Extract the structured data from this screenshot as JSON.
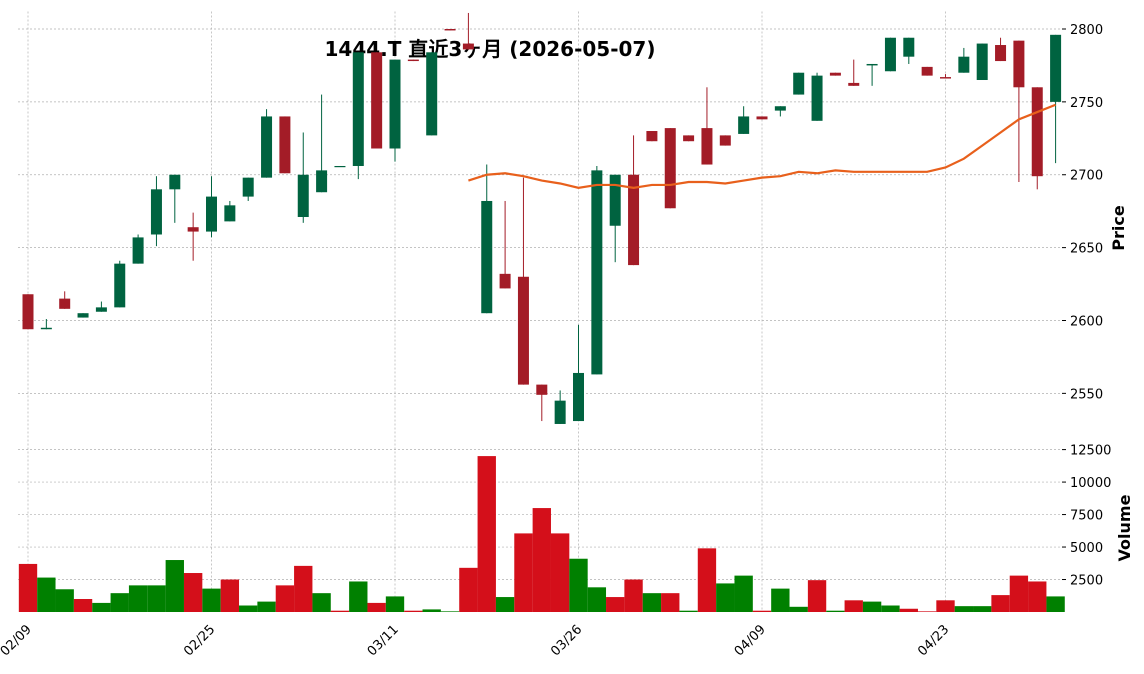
{
  "chart_data": {
    "type": "candlestick",
    "title": "1444.T 直近3ヶ月 (2026-05-07)",
    "y_label": "Price",
    "categories": [
      "02/09",
      null,
      null,
      null,
      null,
      null,
      null,
      null,
      null,
      null,
      "02/25",
      null,
      null,
      null,
      null,
      null,
      null,
      null,
      null,
      null,
      "03/11",
      null,
      null,
      null,
      null,
      null,
      null,
      null,
      null,
      null,
      "03/26",
      null,
      null,
      null,
      null,
      null,
      null,
      null,
      null,
      null,
      "04/09",
      null,
      null,
      null,
      null,
      null,
      null,
      null,
      null,
      null,
      "04/23",
      null,
      null,
      null,
      null,
      null,
      null
    ],
    "open": [
      2618,
      2594,
      2615,
      2602,
      2606,
      2609,
      2639,
      2659,
      2690,
      2664,
      2661,
      2668,
      2685,
      2698,
      2740,
      2671,
      2688,
      2706,
      2706,
      2784,
      2718,
      2779,
      2727,
      2800,
      2790,
      2605,
      2632,
      2630,
      2556,
      2529,
      2531,
      2563,
      2665,
      2700,
      2730,
      2732,
      2727,
      2732,
      2727,
      2728,
      2740,
      2744,
      2755,
      2737,
      2770,
      2763,
      2775,
      2771,
      2781,
      2774,
      2767,
      2770,
      2765,
      2789,
      2792,
      2760,
      2750
    ],
    "high": [
      2618,
      2601,
      2620,
      2605,
      2613,
      2641,
      2659,
      2699,
      2700,
      2674,
      2699,
      2682,
      2698,
      2745,
      2740,
      2729,
      2755,
      2706,
      2784,
      2784,
      2779,
      2779,
      2784,
      2800,
      2811,
      2707,
      2682,
      2698,
      2556,
      2552,
      2597,
      2706,
      2700,
      2727,
      2730,
      2732,
      2727,
      2760,
      2727,
      2747,
      2740,
      2747,
      2770,
      2770,
      2770,
      2779,
      2776,
      2794,
      2794,
      2774,
      2769,
      2787,
      2790,
      2794,
      2792,
      2760,
      2796
    ],
    "low": [
      2594,
      2594,
      2608,
      2602,
      2606,
      2609,
      2639,
      2651,
      2667,
      2641,
      2657,
      2668,
      2682,
      2698,
      2701,
      2667,
      2688,
      2706,
      2697,
      2718,
      2709,
      2778,
      2727,
      2799,
      2786,
      2605,
      2622,
      2556,
      2531,
      2529,
      2531,
      2563,
      2640,
      2638,
      2723,
      2677,
      2723,
      2707,
      2720,
      2728,
      2738,
      2740,
      2755,
      2737,
      2768,
      2761,
      2761,
      2771,
      2776,
      2768,
      2766,
      2770,
      2765,
      2778,
      2695,
      2690,
      2708
    ],
    "close": [
      2594,
      2595,
      2608,
      2605,
      2609,
      2639,
      2657,
      2690,
      2700,
      2661,
      2685,
      2679,
      2698,
      2740,
      2701,
      2700,
      2703,
      2706,
      2784,
      2718,
      2779,
      2778,
      2784,
      2799,
      2786,
      2682,
      2622,
      2556,
      2549,
      2545,
      2564,
      2703,
      2700,
      2638,
      2723,
      2677,
      2723,
      2707,
      2720,
      2740,
      2738,
      2747,
      2770,
      2768,
      2768,
      2761,
      2776,
      2794,
      2794,
      2768,
      2766,
      2781,
      2790,
      2778,
      2760,
      2699,
      2796
    ],
    "up_color": "#006340",
    "down_color": "#a31c27",
    "ma": {
      "color": "#e8601c",
      "values": [
        null,
        null,
        null,
        null,
        null,
        null,
        null,
        null,
        null,
        null,
        null,
        null,
        null,
        null,
        null,
        null,
        null,
        null,
        null,
        null,
        null,
        null,
        null,
        null,
        2696,
        2700,
        2701,
        2699,
        2696,
        2694,
        2691,
        2693,
        2693,
        2691,
        2693,
        2693,
        2695,
        2695,
        2694,
        2696,
        2698,
        2699,
        2702,
        2701,
        2703,
        2702,
        2702,
        2702,
        2702,
        2702,
        2705,
        2711,
        2720,
        2729,
        2738,
        2743,
        2748
      ]
    },
    "ylim": [
      2518,
      2812
    ],
    "yticks": [
      2550,
      2600,
      2650,
      2700,
      2750,
      2800
    ],
    "grid": true,
    "volume": {
      "label": "Volume",
      "values": [
        3700,
        2650,
        1750,
        1000,
        700,
        1450,
        2050,
        2050,
        4000,
        3000,
        1800,
        2500,
        500,
        800,
        2050,
        3550,
        1450,
        100,
        2350,
        700,
        1200,
        100,
        200,
        50,
        3400,
        12000,
        1150,
        6050,
        8000,
        6050,
        4100,
        1900,
        1150,
        2500,
        1450,
        1450,
        100,
        4900,
        2200,
        2800,
        100,
        1800,
        400,
        2450,
        100,
        900,
        800,
        500,
        250,
        50,
        900,
        450,
        450,
        1300,
        2800,
        2350,
        1200
      ],
      "colors": [
        "#d40f1a",
        "#008000",
        "#008000",
        "#d40f1a",
        "#008000",
        "#008000",
        "#008000",
        "#008000",
        "#008000",
        "#d40f1a",
        "#008000",
        "#d40f1a",
        "#008000",
        "#008000",
        "#d40f1a",
        "#d40f1a",
        "#008000",
        "#d40f1a",
        "#008000",
        "#d40f1a",
        "#008000",
        "#d40f1a",
        "#008000",
        "#008000",
        "#d40f1a",
        "#d40f1a",
        "#008000",
        "#d40f1a",
        "#d40f1a",
        "#d40f1a",
        "#008000",
        "#008000",
        "#d40f1a",
        "#d40f1a",
        "#008000",
        "#d40f1a",
        "#008000",
        "#d40f1a",
        "#008000",
        "#008000",
        "#d40f1a",
        "#008000",
        "#008000",
        "#d40f1a",
        "#008000",
        "#d40f1a",
        "#008000",
        "#008000",
        "#d40f1a",
        "#d40f1a",
        "#d40f1a",
        "#008000",
        "#008000",
        "#d40f1a",
        "#d40f1a",
        "#d40f1a",
        "#008000"
      ],
      "ylim": [
        0,
        12700
      ],
      "yticks": [
        2500,
        5000,
        7500,
        10000,
        12500
      ]
    }
  }
}
